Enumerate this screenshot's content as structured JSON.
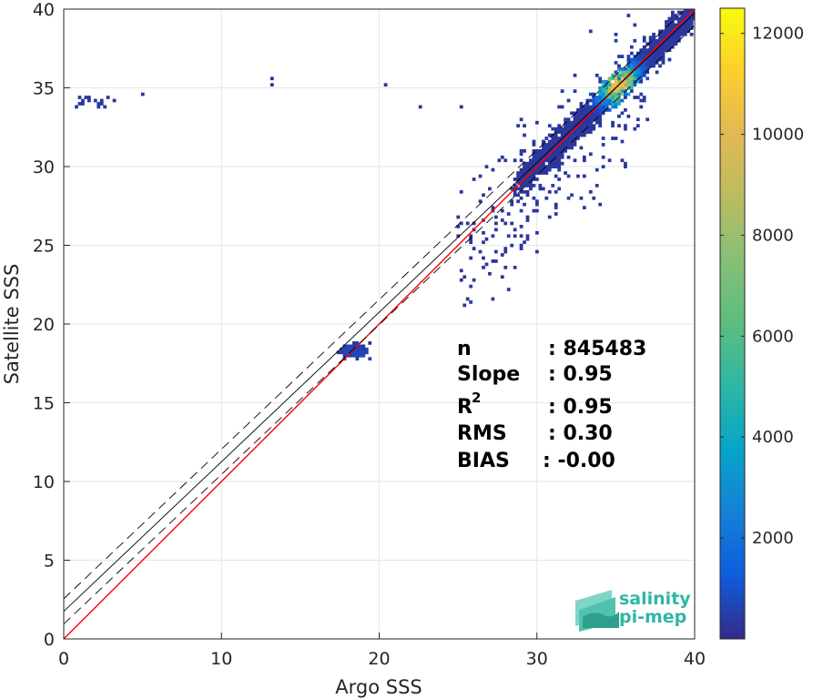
{
  "chart_data": {
    "type": "heatmap",
    "xlabel": "Argo SSS",
    "ylabel": "Satellite SSS",
    "xlim": [
      0,
      40
    ],
    "ylim": [
      0,
      40
    ],
    "x_ticks": [
      "0",
      "10",
      "20",
      "30",
      "40"
    ],
    "y_ticks": [
      "0",
      "5",
      "10",
      "15",
      "20",
      "25",
      "30",
      "35",
      "40"
    ],
    "grid": true,
    "colorbar": {
      "range": [
        0,
        12500
      ],
      "ticks": [
        "2000",
        "4000",
        "6000",
        "8000",
        "10000",
        "12000"
      ],
      "colormap": "parula"
    },
    "reference_lines": [
      {
        "kind": "one-to-one",
        "slope": 1.0,
        "intercept": 0.0,
        "color": "#ff0000"
      },
      {
        "kind": "regression-fit",
        "slope": 0.95,
        "intercept": 1.75,
        "color": "#000000"
      },
      {
        "kind": "fit-upper",
        "slope": 0.95,
        "intercept": 2.55,
        "color": "#000000",
        "dash": true
      },
      {
        "kind": "fit-lower",
        "slope": 0.95,
        "intercept": 0.95,
        "color": "#000000",
        "dash": true
      }
    ],
    "density_clusters": [
      {
        "x": 35.0,
        "y": 35.0,
        "spread": 2.2,
        "peak": 12400
      },
      {
        "x": 18.5,
        "y": 18.3,
        "spread": 0.5,
        "peak": 300
      },
      {
        "x": 1.5,
        "y": 34.0,
        "spread": 0.6,
        "peak": 150
      }
    ],
    "stats": {
      "n_label": "n",
      "n_value": ": 845483",
      "slope_label": "Slope",
      "slope_value": ": 0.95",
      "r2_label": "R",
      "r2_sup": "2",
      "r2_value": ": 0.95",
      "rms_label": "RMS",
      "rms_value": ": 0.30",
      "bias_label": "BIAS",
      "bias_value": ": -0.00"
    }
  },
  "logo": {
    "line1": "salinity",
    "line2": "pi-mep"
  },
  "colors": {
    "one_to_one": "#ff0000",
    "fit": "#000000",
    "logo": "#2fb7a3"
  }
}
